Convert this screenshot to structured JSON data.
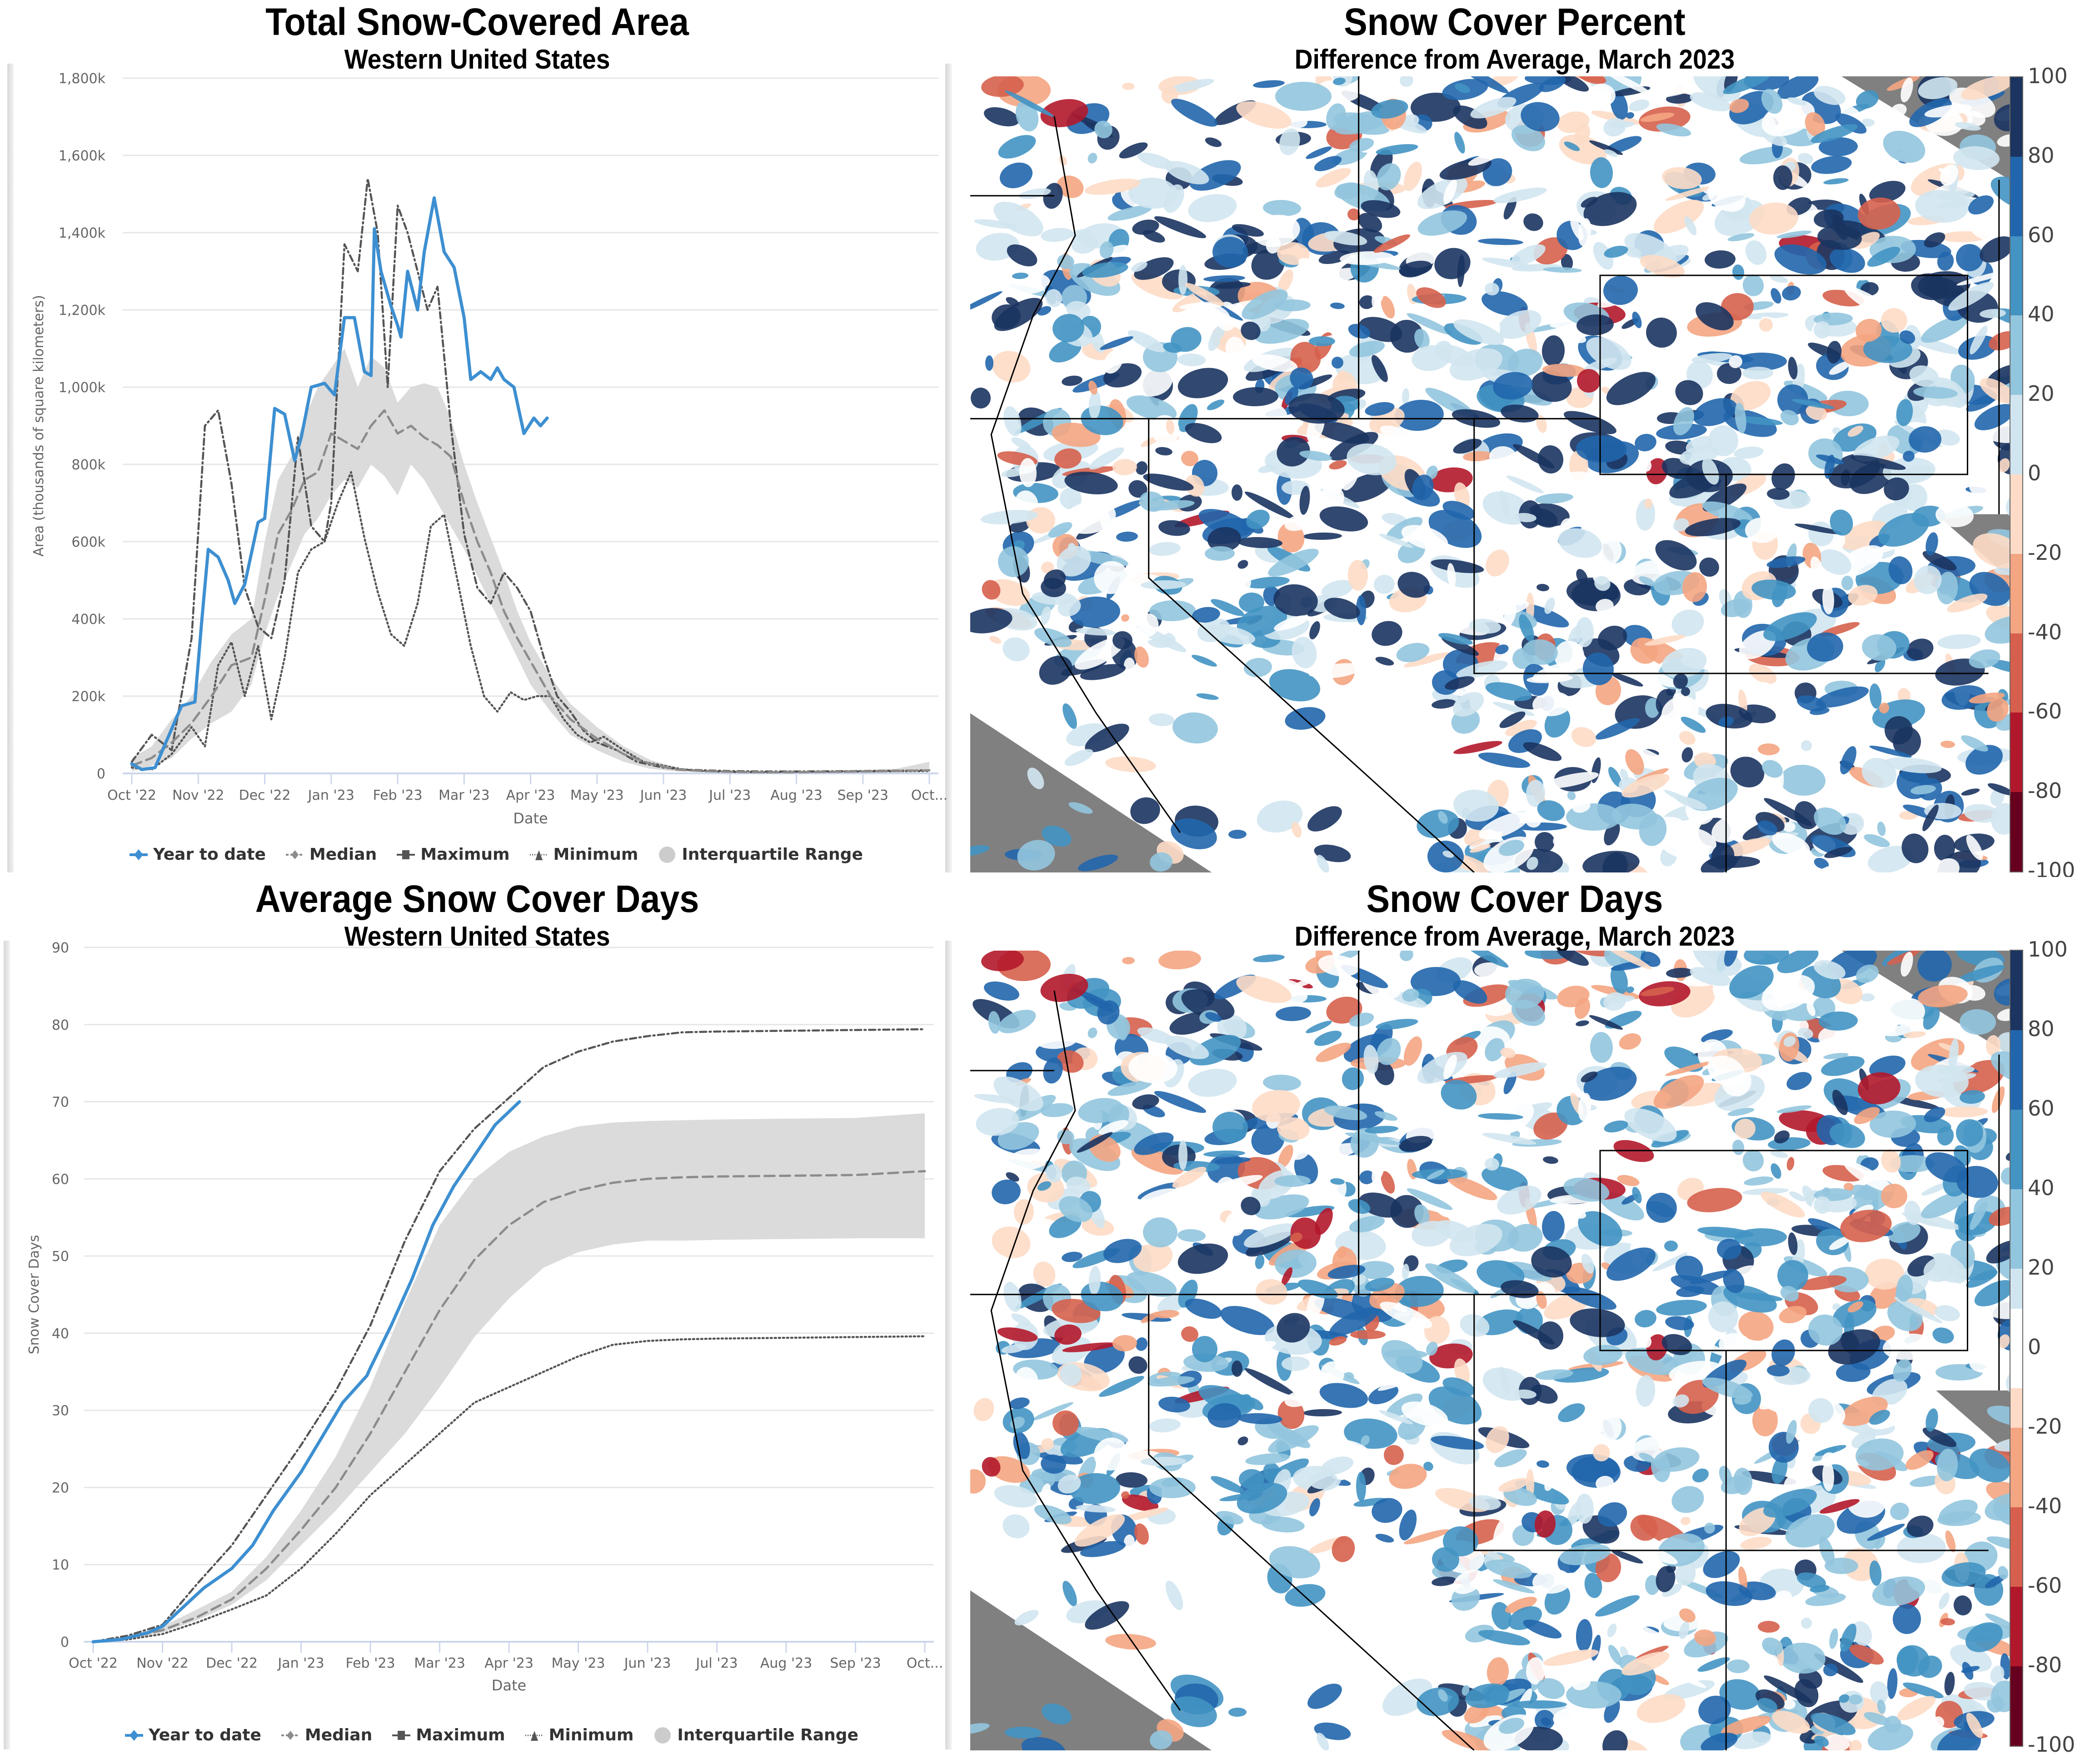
{
  "chart_data": [
    {
      "type": "line",
      "title": "Total Snow-Covered Area",
      "subtitle": "Western United States",
      "xlabel": "Date",
      "ylabel": "Area (thousands of square kilometers)",
      "ylim": [
        0,
        1800
      ],
      "yticks": [
        0,
        200,
        400,
        600,
        800,
        1000,
        1200,
        1400,
        1600,
        1800
      ],
      "ytick_labels": [
        "0",
        "200k",
        "400k",
        "600k",
        "800k",
        "1,000k",
        "1,200k",
        "1,400k",
        "1,600k",
        "1,800k"
      ],
      "xtick_labels": [
        "Oct '22",
        "Nov '22",
        "Dec '22",
        "Jan '23",
        "Feb '23",
        "Mar '23",
        "Apr '23",
        "May '23",
        "Jun '23",
        "Jul '23",
        "Aug '23",
        "Sep '23",
        "Oct..."
      ],
      "grid": true,
      "legend": "bottom",
      "x_units": "months since Oct 1 2022",
      "series": [
        {
          "name": "Year to date",
          "color": "#3d8fd1",
          "style": "solid",
          "x": [
            0.0,
            0.15,
            0.35,
            0.55,
            0.75,
            0.95,
            1.05,
            1.15,
            1.3,
            1.45,
            1.55,
            1.7,
            1.9,
            2.0,
            2.15,
            2.3,
            2.45,
            2.55,
            2.7,
            2.9,
            3.05,
            3.2,
            3.35,
            3.5,
            3.6,
            3.65,
            3.75,
            3.9,
            4.0,
            4.05,
            4.15,
            4.3,
            4.4,
            4.55,
            4.7,
            4.85,
            5.0,
            5.1,
            5.25,
            5.4,
            5.5,
            5.6,
            5.75,
            5.9,
            6.05,
            6.15,
            6.25
          ],
          "y": [
            25,
            10,
            15,
            95,
            175,
            185,
            390,
            580,
            560,
            500,
            440,
            490,
            650,
            660,
            945,
            930,
            810,
            870,
            1000,
            1010,
            980,
            1180,
            1180,
            1040,
            1030,
            1410,
            1300,
            1210,
            1160,
            1130,
            1300,
            1200,
            1350,
            1490,
            1350,
            1310,
            1180,
            1020,
            1040,
            1020,
            1050,
            1020,
            1000,
            880,
            920,
            900,
            920
          ]
        },
        {
          "name": "Median",
          "color": "#8c8c8c",
          "style": "dashed",
          "x": [
            0.0,
            0.3,
            0.6,
            0.9,
            1.2,
            1.5,
            1.8,
            2.0,
            2.2,
            2.4,
            2.6,
            2.8,
            3.0,
            3.2,
            3.4,
            3.6,
            3.8,
            4.0,
            4.2,
            4.4,
            4.6,
            4.8,
            5.0,
            5.2,
            5.4,
            5.6,
            5.8,
            6.0,
            6.3,
            6.6,
            7.0,
            7.4,
            7.8,
            8.2,
            8.6,
            9.0,
            9.5,
            10,
            10.5,
            11,
            11.5,
            12.0
          ],
          "y": [
            20,
            40,
            80,
            130,
            200,
            280,
            300,
            450,
            620,
            680,
            760,
            780,
            880,
            860,
            840,
            900,
            940,
            880,
            900,
            870,
            850,
            820,
            700,
            600,
            520,
            420,
            350,
            290,
            200,
            140,
            90,
            50,
            25,
            10,
            6,
            4,
            3,
            3,
            4,
            5,
            6,
            8
          ]
        },
        {
          "name": "Maximum",
          "color": "#555555",
          "style": "dashdot",
          "x": [
            0.0,
            0.3,
            0.6,
            0.9,
            1.1,
            1.3,
            1.5,
            1.7,
            1.9,
            2.1,
            2.3,
            2.5,
            2.7,
            2.9,
            3.0,
            3.2,
            3.4,
            3.55,
            3.7,
            3.85,
            4.0,
            4.15,
            4.3,
            4.45,
            4.6,
            4.8,
            5.0,
            5.2,
            5.4,
            5.6,
            5.8,
            6.0,
            6.2,
            6.4,
            6.6,
            6.8,
            7.0,
            7.3,
            7.6,
            8.0,
            8.3,
            8.6,
            9.0,
            9.5,
            10,
            11,
            12
          ],
          "y": [
            30,
            100,
            60,
            350,
            900,
            940,
            750,
            480,
            380,
            350,
            500,
            870,
            640,
            600,
            700,
            1370,
            1300,
            1540,
            1400,
            1000,
            1470,
            1400,
            1300,
            1200,
            1260,
            900,
            620,
            480,
            440,
            520,
            480,
            420,
            300,
            200,
            160,
            110,
            80,
            60,
            30,
            15,
            10,
            8,
            6,
            5,
            5,
            6,
            8
          ]
        },
        {
          "name": "Minimum",
          "color": "#555555",
          "style": "dotted",
          "x": [
            0.0,
            0.3,
            0.6,
            0.9,
            1.1,
            1.3,
            1.5,
            1.7,
            1.9,
            2.1,
            2.3,
            2.5,
            2.7,
            2.9,
            3.1,
            3.3,
            3.5,
            3.7,
            3.9,
            4.1,
            4.3,
            4.5,
            4.7,
            4.9,
            5.1,
            5.3,
            5.5,
            5.7,
            5.9,
            6.1,
            6.3,
            6.5,
            6.7,
            6.9,
            7.1,
            7.4,
            7.7,
            8.0,
            8.3,
            8.6,
            9.0,
            9.5,
            10,
            11,
            12
          ],
          "y": [
            15,
            10,
            50,
            120,
            70,
            280,
            340,
            200,
            330,
            140,
            300,
            520,
            580,
            600,
            700,
            780,
            610,
            470,
            360,
            330,
            440,
            640,
            670,
            500,
            330,
            200,
            160,
            210,
            190,
            200,
            200,
            140,
            100,
            80,
            95,
            60,
            30,
            20,
            10,
            6,
            4,
            3,
            4,
            5,
            6
          ]
        },
        {
          "name": "Interquartile Range",
          "color": "#d9d9d9",
          "style": "area",
          "x": [
            0.0,
            0.3,
            0.6,
            0.9,
            1.2,
            1.5,
            1.8,
            2.0,
            2.2,
            2.4,
            2.6,
            2.8,
            3.0,
            3.2,
            3.4,
            3.6,
            3.8,
            4.0,
            4.2,
            4.4,
            4.6,
            4.8,
            5.0,
            5.2,
            5.4,
            5.6,
            5.8,
            6.0,
            6.3,
            6.6,
            7.0,
            7.4,
            7.8,
            8.2,
            8.6,
            9.0,
            9.5,
            10,
            10.5,
            11,
            11.5,
            12.0
          ],
          "low": [
            5,
            20,
            40,
            90,
            130,
            160,
            230,
            360,
            460,
            540,
            620,
            660,
            720,
            760,
            740,
            800,
            770,
            720,
            800,
            760,
            700,
            640,
            580,
            510,
            440,
            370,
            300,
            230,
            160,
            100,
            60,
            30,
            12,
            5,
            3,
            2,
            2,
            2,
            3,
            3,
            4,
            5
          ],
          "high": [
            40,
            70,
            140,
            200,
            290,
            360,
            400,
            600,
            760,
            820,
            920,
            1000,
            1050,
            1100,
            1000,
            1080,
            1050,
            960,
            1000,
            1010,
            1000,
            920,
            800,
            700,
            610,
            520,
            420,
            340,
            250,
            180,
            120,
            70,
            35,
            15,
            8,
            6,
            5,
            6,
            7,
            9,
            12,
            30
          ]
        }
      ]
    },
    {
      "type": "line",
      "title": "Average Snow Cover Days",
      "subtitle": "Western United States",
      "xlabel": "Date",
      "ylabel": "Snow Cover Days",
      "ylim": [
        0,
        90
      ],
      "yticks": [
        0,
        10,
        20,
        30,
        40,
        50,
        60,
        70,
        80,
        90
      ],
      "ytick_labels": [
        "0",
        "10",
        "20",
        "30",
        "40",
        "50",
        "60",
        "70",
        "80",
        "90"
      ],
      "xtick_labels": [
        "Oct '22",
        "Nov '22",
        "Dec '22",
        "Jan '23",
        "Feb '23",
        "Mar '23",
        "Apr '23",
        "May '23",
        "Jun '23",
        "Jul '23",
        "Aug '23",
        "Sep '23",
        "Oct..."
      ],
      "grid": true,
      "legend": "bottom",
      "x_units": "months since Oct 1 2022",
      "series": [
        {
          "name": "Year to date",
          "color": "#3d8fd1",
          "style": "solid",
          "x": [
            0.0,
            0.4,
            0.8,
            1.0,
            1.3,
            1.6,
            2.0,
            2.3,
            2.6,
            3.0,
            3.3,
            3.6,
            3.95,
            4.0,
            4.3,
            4.6,
            4.9,
            5.2,
            5.5,
            5.8,
            6.15
          ],
          "y": [
            0,
            0.3,
            1.2,
            2.0,
            4.5,
            7.0,
            9.5,
            12.5,
            17,
            22,
            26.5,
            31,
            34.5,
            35.5,
            41,
            47,
            54,
            59,
            63,
            67,
            70
          ]
        },
        {
          "name": "Median",
          "color": "#8c8c8c",
          "style": "dashed",
          "x": [
            0.0,
            0.5,
            1.0,
            1.5,
            2.0,
            2.5,
            3.0,
            3.5,
            4.0,
            4.5,
            5.0,
            5.5,
            6.0,
            6.5,
            7.0,
            7.5,
            8.0,
            8.5,
            9.0,
            10.0,
            11.0,
            12.0
          ],
          "y": [
            0,
            0.5,
            1.5,
            3.2,
            5.5,
            9.5,
            14.5,
            20,
            27,
            35,
            43,
            49.5,
            54,
            57,
            58.5,
            59.5,
            60,
            60.2,
            60.3,
            60.4,
            60.5,
            61
          ]
        },
        {
          "name": "Maximum",
          "color": "#555555",
          "style": "dashdot",
          "x": [
            0.0,
            0.5,
            1.0,
            1.5,
            2.0,
            2.5,
            3.0,
            3.5,
            4.0,
            4.5,
            5.0,
            5.5,
            6.0,
            6.5,
            7.0,
            7.5,
            8.0,
            8.5,
            9.0,
            10.0,
            11.0,
            12.0
          ],
          "y": [
            0,
            0.8,
            2.2,
            7.5,
            12.5,
            19,
            25.5,
            32.5,
            41,
            52,
            61,
            66.5,
            70.5,
            74.5,
            76.5,
            77.8,
            78.5,
            79,
            79.1,
            79.2,
            79.3,
            79.4
          ]
        },
        {
          "name": "Minimum",
          "color": "#555555",
          "style": "dotted",
          "x": [
            0.0,
            0.5,
            1.0,
            1.5,
            2.0,
            2.5,
            3.0,
            3.5,
            4.0,
            4.5,
            5.0,
            5.5,
            6.0,
            6.5,
            7.0,
            7.5,
            8.0,
            8.5,
            9.0,
            10.0,
            11.0,
            12.0
          ],
          "y": [
            0,
            0.3,
            1.0,
            2.5,
            4.2,
            6.0,
            9.5,
            14,
            19,
            23,
            27,
            31,
            33,
            35,
            37,
            38.5,
            39,
            39.2,
            39.3,
            39.4,
            39.5,
            39.6
          ]
        },
        {
          "name": "Interquartile Range",
          "color": "#d9d9d9",
          "style": "area",
          "x": [
            0.0,
            0.5,
            1.0,
            1.5,
            2.0,
            2.5,
            3.0,
            3.5,
            4.0,
            4.5,
            5.0,
            5.5,
            6.0,
            6.5,
            7.0,
            7.5,
            8.0,
            8.5,
            9.0,
            10.0,
            11.0,
            12.0
          ],
          "low": [
            0,
            0.3,
            1.2,
            2.8,
            4.8,
            8.0,
            12.5,
            17,
            22,
            27,
            33,
            39.5,
            44.5,
            48.5,
            50.5,
            51.5,
            52,
            52,
            52.1,
            52.2,
            52.3,
            52.3
          ],
          "high": [
            0,
            0.8,
            2.0,
            4.2,
            6.5,
            11,
            17,
            24,
            33,
            44,
            54,
            60,
            63.5,
            65.5,
            66.8,
            67.3,
            67.5,
            67.6,
            67.7,
            67.8,
            67.9,
            68.5
          ]
        }
      ]
    }
  ],
  "maps": [
    {
      "title": "Snow Cover Percent",
      "subtitle": "Difference from Average, March 2023",
      "colorbar": {
        "ticks": [
          "100",
          "80",
          "60",
          "40",
          "20",
          "0",
          "-20",
          "-40",
          "-60",
          "-80",
          "-100"
        ],
        "bands": [
          "#1b3460",
          "#2166ac",
          "#4393c3",
          "#92c5de",
          "#d1e5f0",
          "#fddbc7",
          "#f4a582",
          "#d6604d",
          "#b2182b",
          "#67001f"
        ]
      }
    },
    {
      "title": "Snow Cover Days",
      "subtitle": "Difference from Average, March 2023",
      "colorbar": {
        "ticks": [
          "100",
          "80",
          "60",
          "40",
          "20",
          "0",
          "-20",
          "-40",
          "-60",
          "-80",
          "-100"
        ],
        "bands": [
          "#1b3460",
          "#2166ac",
          "#4393c3",
          "#92c5de",
          "#d1e5f0",
          "#ffffff",
          "#fddbc7",
          "#f4a582",
          "#d6604d",
          "#b2182b",
          "#67001f"
        ]
      }
    }
  ],
  "legend_labels": {
    "ytd": "Year to date",
    "median": "Median",
    "maximum": "Maximum",
    "minimum": "Minimum",
    "iqr": "Interquartile Range"
  }
}
